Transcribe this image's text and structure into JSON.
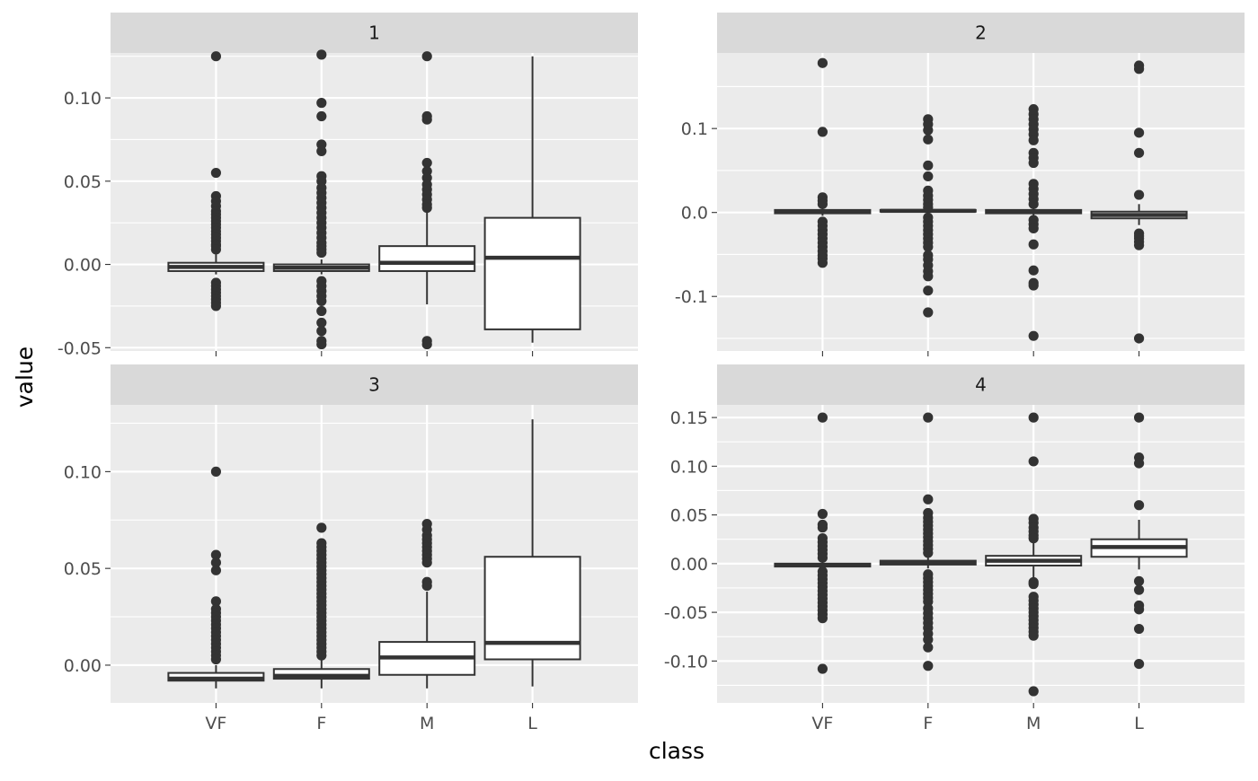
{
  "chart_data": {
    "type": "box",
    "facet_wrap": "2 columns",
    "xlabel": "class",
    "ylabel": "value",
    "categories": [
      "VF",
      "F",
      "M",
      "L"
    ],
    "colors": {
      "panel_bg": "#EBEBEB",
      "strip_bg": "#D9D9D9",
      "grid": "#FFFFFF",
      "box_fill": "#FFFFFF",
      "box_line": "#333333",
      "outlier": "#333333",
      "tick_text": "#4D4D4D",
      "axis_title": "#000000"
    },
    "panels": [
      {
        "strip": "1",
        "ylim": [
          -0.052,
          0.127
        ],
        "yticks": [
          -0.05,
          0.0,
          0.05,
          0.1
        ],
        "ytick_labels": [
          "-0.05",
          "0.00",
          "0.05",
          "0.10"
        ],
        "boxes": [
          {
            "category": "VF",
            "q1": -0.004,
            "median": -0.0015,
            "q3": 0.001,
            "whisker_low": -0.006,
            "whisker_high": 0.006,
            "outliers": [
              0.125,
              0.055,
              0.041,
              0.038,
              0.035,
              0.032,
              0.03,
              0.028,
              0.026,
              0.024,
              0.022,
              0.02,
              0.018,
              0.016,
              0.014,
              0.012,
              0.011,
              0.009,
              -0.011,
              -0.013,
              -0.015,
              -0.017,
              -0.019,
              -0.021,
              -0.023,
              -0.025
            ]
          },
          {
            "category": "F",
            "q1": -0.004,
            "median": -0.002,
            "q3": 0.0,
            "whisker_low": -0.006,
            "whisker_high": 0.003,
            "outliers": [
              0.126,
              0.097,
              0.089,
              0.072,
              0.068,
              0.053,
              0.05,
              0.046,
              0.043,
              0.04,
              0.037,
              0.034,
              0.031,
              0.028,
              0.025,
              0.022,
              0.019,
              0.016,
              0.013,
              0.011,
              0.009,
              0.007,
              -0.01,
              -0.013,
              -0.016,
              -0.019,
              -0.022,
              -0.028,
              -0.035,
              -0.04,
              -0.046,
              -0.048
            ]
          },
          {
            "category": "M",
            "q1": -0.004,
            "median": 0.001,
            "q3": 0.011,
            "whisker_low": -0.024,
            "whisker_high": 0.032,
            "outliers": [
              0.125,
              0.089,
              0.087,
              0.061,
              0.056,
              0.052,
              0.048,
              0.045,
              0.042,
              0.039,
              0.036,
              0.034,
              -0.046,
              -0.048
            ]
          },
          {
            "category": "L",
            "q1": -0.039,
            "median": 0.004,
            "q3": 0.028,
            "whisker_low": -0.047,
            "whisker_high": 0.125,
            "outliers": []
          }
        ]
      },
      {
        "strip": "2",
        "ylim": [
          -0.165,
          0.19
        ],
        "yticks": [
          -0.1,
          0.0,
          0.1
        ],
        "ytick_labels": [
          "-0.1",
          "0.0",
          "0.1"
        ],
        "boxes": [
          {
            "category": "VF",
            "q1": -0.001,
            "median": 0.001,
            "q3": 0.003,
            "whisker_low": -0.004,
            "whisker_high": 0.006,
            "outliers": [
              0.178,
              0.096,
              0.018,
              0.014,
              0.01,
              -0.011,
              -0.016,
              -0.021,
              -0.026,
              -0.031,
              -0.036,
              -0.041,
              -0.046,
              -0.051,
              -0.055,
              -0.06
            ]
          },
          {
            "category": "F",
            "q1": 0.001,
            "median": 0.002,
            "q3": 0.003,
            "whisker_low": -0.001,
            "whisker_high": 0.005,
            "outliers": [
              0.111,
              0.105,
              0.098,
              0.087,
              0.056,
              0.043,
              0.026,
              0.02,
              0.015,
              0.01,
              0.006,
              -0.006,
              -0.011,
              -0.016,
              -0.021,
              -0.026,
              -0.031,
              -0.036,
              -0.041,
              -0.051,
              -0.056,
              -0.063,
              -0.07,
              -0.076,
              -0.093,
              -0.119
            ]
          },
          {
            "category": "M",
            "q1": -0.001,
            "median": 0.001,
            "q3": 0.003,
            "whisker_low": -0.004,
            "whisker_high": 0.007,
            "outliers": [
              0.123,
              0.117,
              0.111,
              0.105,
              0.099,
              0.093,
              0.086,
              0.071,
              0.065,
              0.059,
              0.034,
              0.028,
              0.022,
              0.016,
              0.01,
              -0.009,
              -0.014,
              -0.019,
              -0.038,
              -0.069,
              -0.084,
              -0.087,
              -0.147
            ]
          },
          {
            "category": "L",
            "q1": -0.007,
            "median": -0.003,
            "q3": 0.001,
            "whisker_low": -0.015,
            "whisker_high": 0.01,
            "outliers": [
              0.175,
              0.171,
              0.095,
              0.071,
              0.021,
              -0.025,
              -0.028,
              -0.031,
              -0.035,
              -0.039,
              -0.15
            ]
          }
        ]
      },
      {
        "strip": "3",
        "ylim": [
          -0.0195,
          0.1345
        ],
        "yticks": [
          0.0,
          0.05,
          0.1
        ],
        "ytick_labels": [
          "0.00",
          "0.05",
          "0.10"
        ],
        "boxes": [
          {
            "category": "VF",
            "q1": -0.008,
            "median": -0.007,
            "q3": -0.004,
            "whisker_low": -0.012,
            "whisker_high": 0.0,
            "outliers": [
              0.1,
              0.057,
              0.053,
              0.049,
              0.033,
              0.029,
              0.027,
              0.025,
              0.023,
              0.021,
              0.019,
              0.017,
              0.015,
              0.013,
              0.011,
              0.009,
              0.007,
              0.005,
              0.003
            ]
          },
          {
            "category": "F",
            "q1": -0.007,
            "median": -0.0055,
            "q3": -0.002,
            "whisker_low": -0.012,
            "whisker_high": 0.003,
            "outliers": [
              0.071,
              0.063,
              0.061,
              0.059,
              0.057,
              0.055,
              0.053,
              0.051,
              0.049,
              0.047,
              0.045,
              0.043,
              0.041,
              0.039,
              0.037,
              0.035,
              0.033,
              0.031,
              0.029,
              0.027,
              0.025,
              0.023,
              0.021,
              0.019,
              0.017,
              0.015,
              0.013,
              0.011,
              0.009,
              0.007,
              0.005
            ]
          },
          {
            "category": "M",
            "q1": -0.005,
            "median": 0.004,
            "q3": 0.012,
            "whisker_low": -0.012,
            "whisker_high": 0.038,
            "outliers": [
              0.073,
              0.07,
              0.067,
              0.065,
              0.063,
              0.061,
              0.059,
              0.057,
              0.055,
              0.053,
              0.043,
              0.041
            ]
          },
          {
            "category": "L",
            "q1": 0.003,
            "median": 0.0115,
            "q3": 0.056,
            "whisker_low": -0.011,
            "whisker_high": 0.127,
            "outliers": []
          }
        ]
      },
      {
        "strip": "4",
        "ylim": [
          -0.143,
          0.163
        ],
        "yticks": [
          -0.1,
          -0.05,
          0.0,
          0.05,
          0.1,
          0.15
        ],
        "ytick_labels": [
          "-0.10",
          "-0.05",
          "0.00",
          "0.05",
          "0.10",
          "0.15"
        ],
        "boxes": [
          {
            "category": "VF",
            "q1": -0.003,
            "median": -0.0015,
            "q3": 0.0,
            "whisker_low": -0.006,
            "whisker_high": 0.003,
            "outliers": [
              0.15,
              0.051,
              0.04,
              0.037,
              0.026,
              0.022,
              0.018,
              0.014,
              0.01,
              0.006,
              -0.008,
              -0.012,
              -0.016,
              -0.02,
              -0.024,
              -0.028,
              -0.032,
              -0.036,
              -0.04,
              -0.044,
              -0.048,
              -0.052,
              -0.056,
              -0.108
            ]
          },
          {
            "category": "F",
            "q1": -0.001,
            "median": 0.001,
            "q3": 0.003,
            "whisker_low": -0.005,
            "whisker_high": 0.006,
            "outliers": [
              0.15,
              0.066,
              0.052,
              0.047,
              0.043,
              0.039,
              0.035,
              0.031,
              0.027,
              0.023,
              0.019,
              0.015,
              0.011,
              -0.011,
              -0.015,
              -0.019,
              -0.023,
              -0.027,
              -0.031,
              -0.035,
              -0.039,
              -0.046,
              -0.051,
              -0.056,
              -0.061,
              -0.066,
              -0.072,
              -0.078,
              -0.086,
              -0.105
            ]
          },
          {
            "category": "M",
            "q1": -0.002,
            "median": 0.003,
            "q3": 0.008,
            "whisker_low": -0.015,
            "whisker_high": 0.023,
            "outliers": [
              0.15,
              0.105,
              0.046,
              0.042,
              0.037,
              0.033,
              0.029,
              0.026,
              -0.019,
              -0.021,
              -0.034,
              -0.038,
              -0.042,
              -0.046,
              -0.05,
              -0.054,
              -0.058,
              -0.062,
              -0.066,
              -0.07,
              -0.074,
              -0.131
            ]
          },
          {
            "category": "L",
            "q1": 0.007,
            "median": 0.017,
            "q3": 0.025,
            "whisker_low": -0.006,
            "whisker_high": 0.045,
            "outliers": [
              0.15,
              0.109,
              0.103,
              0.06,
              -0.018,
              -0.027,
              -0.043,
              -0.047,
              -0.067,
              -0.103
            ]
          }
        ]
      }
    ]
  }
}
